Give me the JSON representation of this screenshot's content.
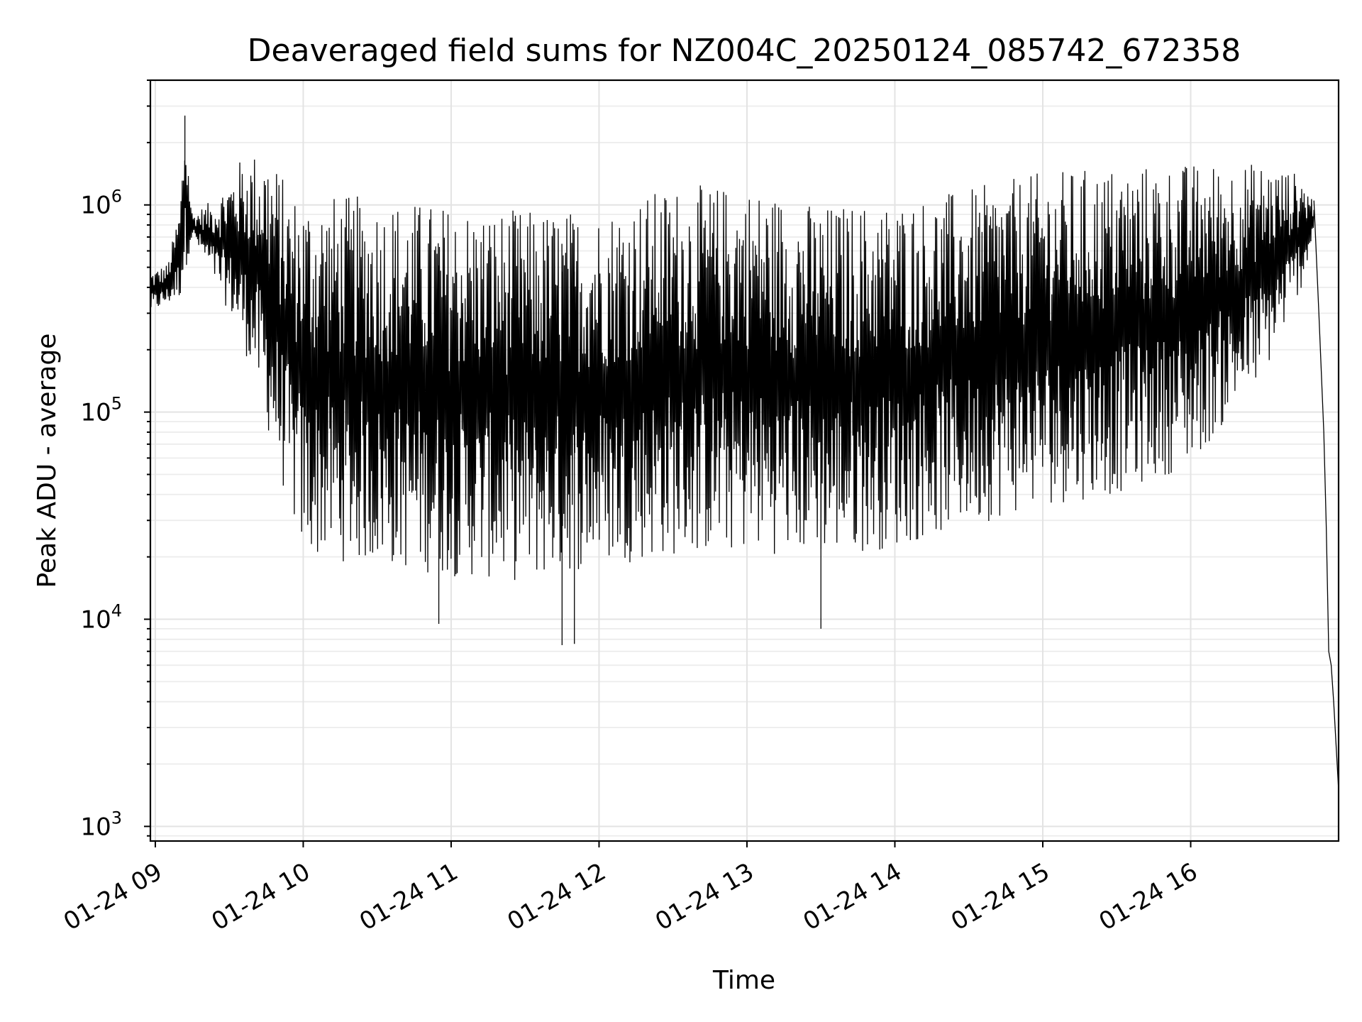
{
  "chart_data": {
    "type": "line",
    "title": "Deaveraged field sums for NZ004C_20250124_085742_672358",
    "xlabel": "Time",
    "ylabel": "Peak ADU - average",
    "yscale": "log",
    "ylim": [
      850,
      4000000
    ],
    "xlim": [
      "2025-01-24T08:58",
      "2025-01-24T17:00"
    ],
    "grid": true,
    "line_color": "#000000",
    "x_ticks": [
      {
        "t": "2025-01-24T09:00",
        "label": "01-24 09"
      },
      {
        "t": "2025-01-24T10:00",
        "label": "01-24 10"
      },
      {
        "t": "2025-01-24T11:00",
        "label": "01-24 11"
      },
      {
        "t": "2025-01-24T12:00",
        "label": "01-24 12"
      },
      {
        "t": "2025-01-24T13:00",
        "label": "01-24 13"
      },
      {
        "t": "2025-01-24T14:00",
        "label": "01-24 14"
      },
      {
        "t": "2025-01-24T15:00",
        "label": "01-24 15"
      },
      {
        "t": "2025-01-24T16:00",
        "label": "01-24 16"
      }
    ],
    "y_ticks": [
      {
        "value": 1000,
        "base": "10",
        "exp": "3"
      },
      {
        "value": 10000,
        "base": "10",
        "exp": "4"
      },
      {
        "value": 100000,
        "base": "10",
        "exp": "5"
      },
      {
        "value": 1000000,
        "base": "10",
        "exp": "6"
      }
    ],
    "series": [
      {
        "note_style": "dense oscillating signal between envelopes",
        "upper_envelope": [
          [
            "2025-01-24T08:58",
            480000
          ],
          [
            "2025-01-24T09:05",
            520000
          ],
          [
            "2025-01-24T09:10",
            1000000
          ],
          [
            "2025-01-24T09:12",
            2700000
          ],
          [
            "2025-01-24T09:15",
            900000
          ],
          [
            "2025-01-24T09:25",
            1100000
          ],
          [
            "2025-01-24T09:35",
            1700000
          ],
          [
            "2025-01-24T09:45",
            1900000
          ],
          [
            "2025-01-24T09:50",
            1500000
          ],
          [
            "2025-01-24T09:55",
            1150000
          ],
          [
            "2025-01-24T10:30",
            1100000
          ],
          [
            "2025-01-24T11:00",
            1000000
          ],
          [
            "2025-01-24T11:30",
            950000
          ],
          [
            "2025-01-24T12:00",
            950000
          ],
          [
            "2025-01-24T12:15",
            1100000
          ],
          [
            "2025-01-24T12:30",
            1250000
          ],
          [
            "2025-01-24T13:00",
            1250000
          ],
          [
            "2025-01-24T13:30",
            1000000
          ],
          [
            "2025-01-24T14:00",
            1050000
          ],
          [
            "2025-01-24T14:30",
            1200000
          ],
          [
            "2025-01-24T15:00",
            1450000
          ],
          [
            "2025-01-24T15:30",
            1550000
          ],
          [
            "2025-01-24T16:00",
            1600000
          ],
          [
            "2025-01-24T16:30",
            1600000
          ],
          [
            "2025-01-24T16:45",
            1400000
          ],
          [
            "2025-01-24T16:50",
            1050000
          ]
        ],
        "lower_envelope": [
          [
            "2025-01-24T08:58",
            300000
          ],
          [
            "2025-01-24T09:10",
            350000
          ],
          [
            "2025-01-24T09:15",
            700000
          ],
          [
            "2025-01-24T09:30",
            300000
          ],
          [
            "2025-01-24T09:40",
            150000
          ],
          [
            "2025-01-24T09:50",
            50000
          ],
          [
            "2025-01-24T10:00",
            20000
          ],
          [
            "2025-01-24T10:30",
            18000
          ],
          [
            "2025-01-24T11:00",
            16000
          ],
          [
            "2025-01-24T11:30",
            15000
          ],
          [
            "2025-01-24T12:00",
            18000
          ],
          [
            "2025-01-24T12:30",
            20000
          ],
          [
            "2025-01-24T13:00",
            21000
          ],
          [
            "2025-01-24T13:30",
            20000
          ],
          [
            "2025-01-24T14:00",
            22000
          ],
          [
            "2025-01-24T14:30",
            28000
          ],
          [
            "2025-01-24T15:00",
            35000
          ],
          [
            "2025-01-24T15:30",
            40000
          ],
          [
            "2025-01-24T16:00",
            55000
          ],
          [
            "2025-01-24T16:30",
            150000
          ],
          [
            "2025-01-24T16:45",
            400000
          ],
          [
            "2025-01-24T16:50",
            700000
          ]
        ],
        "notable_points": [
          [
            "2025-01-24T09:12",
            2700000
          ],
          [
            "2025-01-24T10:55",
            9500
          ],
          [
            "2025-01-24T11:45",
            7500
          ],
          [
            "2025-01-24T11:50",
            7600
          ],
          [
            "2025-01-24T13:30",
            9000
          ]
        ],
        "tail": [
          [
            "2025-01-24T16:50",
            1050000
          ],
          [
            "2025-01-24T16:52",
            300000
          ],
          [
            "2025-01-24T16:54",
            80000
          ],
          [
            "2025-01-24T16:55",
            28000
          ],
          [
            "2025-01-24T16:56",
            7000
          ],
          [
            "2025-01-24T16:57",
            6000
          ],
          [
            "2025-01-24T16:58",
            4000
          ],
          [
            "2025-01-24T17:00",
            1500
          ]
        ]
      }
    ]
  }
}
